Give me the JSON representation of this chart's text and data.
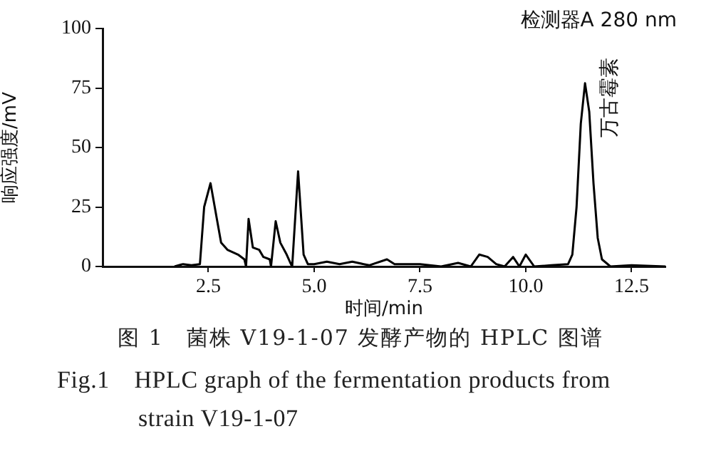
{
  "chart_data": {
    "type": "line",
    "title": "图 1　菌株 V19-1-07 发酵产物的 HPLC 图谱",
    "subtitle": "Fig.1　HPLC graph of the fermentation products from strain V19-1-07",
    "xlabel": "时间/min",
    "ylabel": "响应强度/mV",
    "annotations": [
      "检测器A 280 nm",
      {
        "text": "万古霉素",
        "x": 11.4,
        "y": 77
      }
    ],
    "xlim": [
      0,
      13.3
    ],
    "xticks": [
      2.5,
      {
        "value": 5,
        "label": "5.0"
      },
      7.5,
      {
        "value": 10,
        "label": "10.0"
      },
      12.5
    ],
    "ylim": [
      0,
      100
    ],
    "yticks": [
      0,
      25,
      50,
      75,
      100
    ],
    "grid": false,
    "legend": false,
    "marker": "none",
    "line_style": "solid",
    "x": [
      1.7,
      1.9,
      2.1,
      2.3,
      2.4,
      2.55,
      2.7,
      2.8,
      2.95,
      3.2,
      3.35,
      3.39,
      3.45,
      3.55,
      3.7,
      3.8,
      3.95,
      3.98,
      4.09,
      4.2,
      4.35,
      4.45,
      4.48,
      4.62,
      4.75,
      4.85,
      5.0,
      5.3,
      5.6,
      5.9,
      6.3,
      6.72,
      6.9,
      7.2,
      7.5,
      8.0,
      8.4,
      8.7,
      8.9,
      9.1,
      9.3,
      9.5,
      9.7,
      9.85,
      10.0,
      10.2,
      10.6,
      11.0,
      11.1,
      11.2,
      11.3,
      11.4,
      11.5,
      11.6,
      11.7,
      11.8,
      12.0,
      12.5,
      13.3
    ],
    "series": [
      {
        "color": "#000000",
        "values": [
          0,
          1,
          0.5,
          1,
          25,
          35,
          20,
          10,
          7,
          5,
          3,
          0,
          20,
          8,
          7,
          4,
          3,
          0,
          19,
          10,
          5,
          1,
          0,
          40,
          5,
          1,
          1,
          2,
          1,
          2,
          0.5,
          3,
          1,
          1,
          1,
          0,
          1.5,
          0,
          5,
          4,
          1,
          0,
          4,
          0,
          5,
          0,
          0.5,
          1,
          5,
          25,
          60,
          77,
          65,
          35,
          12,
          3,
          0,
          0.5,
          0
        ]
      }
    ]
  }
}
